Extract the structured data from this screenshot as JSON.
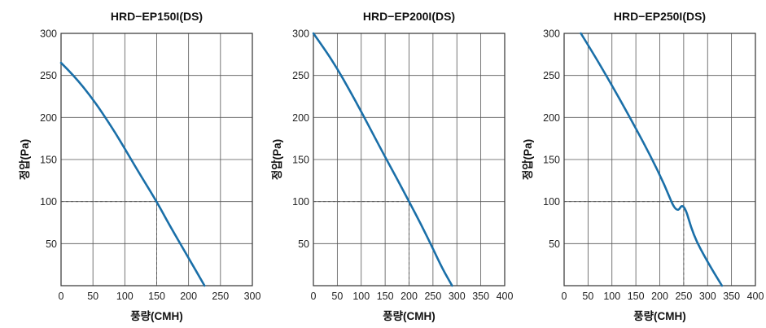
{
  "colors": {
    "curve": "#1a6fa8",
    "grid": "#555555",
    "text": "#111111"
  },
  "chart_data": [
    {
      "type": "line",
      "title": "HRD−EP150I(DS)",
      "xlabel": "풍량(CMH)",
      "ylabel": "정압(Pa)",
      "xlim": [
        0,
        300
      ],
      "ylim": [
        0,
        300
      ],
      "xticks": [
        0,
        50,
        100,
        150,
        200,
        250,
        300
      ],
      "xtick_labels": [
        "0",
        "50",
        "100",
        "150",
        "200",
        "250",
        "300"
      ],
      "yticks": [
        50,
        100,
        150,
        200,
        250,
        300
      ],
      "ytick_labels": [
        "50",
        "100",
        "150",
        "200",
        "250",
        "300"
      ],
      "grid": true,
      "series": [
        {
          "x": [
            0,
            20,
            50,
            80,
            100,
            120,
            150,
            170,
            200,
            225
          ],
          "y": [
            265,
            250,
            222,
            188,
            163,
            137,
            100,
            72,
            33,
            0
          ]
        }
      ],
      "reference_point": {
        "x": 150,
        "y": 100
      }
    },
    {
      "type": "line",
      "title": "HRD−EP200I(DS)",
      "xlabel": "풍량(CMH)",
      "ylabel": "정압(Pa)",
      "xlim": [
        0,
        400
      ],
      "ylim": [
        0,
        300
      ],
      "xticks": [
        0,
        50,
        100,
        150,
        200,
        250,
        300,
        350,
        400
      ],
      "xtick_labels": [
        "0",
        "50",
        "100",
        "150",
        "200",
        "250",
        "300",
        "350",
        "400"
      ],
      "yticks": [
        50,
        100,
        150,
        200,
        250,
        300
      ],
      "ytick_labels": [
        "50",
        "100",
        "150",
        "200",
        "250",
        "300"
      ],
      "grid": true,
      "series": [
        {
          "x": [
            0,
            25,
            50,
            75,
            100,
            125,
            150,
            175,
            200,
            225,
            250,
            270,
            290
          ],
          "y": [
            300,
            280,
            258,
            233,
            207,
            180,
            153,
            127,
            100,
            73,
            44,
            20,
            0
          ]
        }
      ],
      "reference_point": {
        "x": 200,
        "y": 100
      }
    },
    {
      "type": "line",
      "title": "HRD−EP250I(DS)",
      "xlabel": "풍량(CMH)",
      "ylabel": "정압(Pa)",
      "xlim": [
        0,
        400
      ],
      "ylim": [
        0,
        300
      ],
      "xticks": [
        0,
        50,
        100,
        150,
        200,
        250,
        300,
        350,
        400
      ],
      "xtick_labels": [
        "0",
        "50",
        "100",
        "150",
        "200",
        "250",
        "300",
        "350",
        "400"
      ],
      "yticks": [
        50,
        100,
        150,
        200,
        250,
        300
      ],
      "ytick_labels": [
        "50",
        "100",
        "150",
        "200",
        "250",
        "300"
      ],
      "grid": true,
      "series": [
        {
          "x": [
            35,
            60,
            90,
            120,
            150,
            180,
            210,
            235,
            250,
            270,
            300,
            330
          ],
          "y": [
            300,
            277,
            248,
            218,
            187,
            155,
            120,
            85,
            100,
            60,
            28,
            0
          ]
        }
      ],
      "reference_point": {
        "x": 250,
        "y": 100
      }
    }
  ]
}
